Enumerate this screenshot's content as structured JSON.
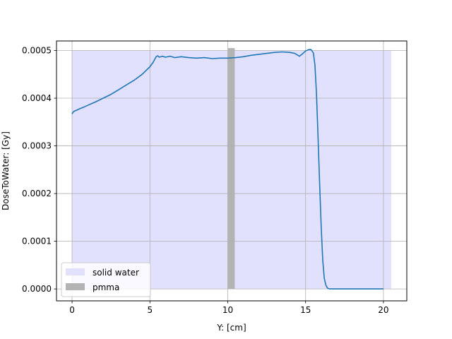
{
  "chart_data": {
    "type": "line",
    "title": "",
    "xlabel": "Y: [cm]",
    "ylabel": "DoseToWater: [Gy]",
    "xlim": [
      -1.0,
      21.5
    ],
    "ylim": [
      -2.5e-05,
      0.00052
    ],
    "xticks": [
      0,
      5,
      10,
      15,
      20
    ],
    "xtick_labels": [
      "0",
      "5",
      "10",
      "15",
      "20"
    ],
    "yticks": [
      0.0,
      0.0001,
      0.0002,
      0.0003,
      0.0004,
      0.0005
    ],
    "ytick_labels": [
      "0.0000",
      "0.0001",
      "0.0002",
      "0.0003",
      "0.0004",
      "0.0005"
    ],
    "grid": true,
    "legend_position": "lower-left",
    "regions": [
      {
        "name": "solid water",
        "x": [
          0.0,
          20.5
        ],
        "y": [
          0.0,
          0.0005
        ],
        "color": "#e1e1fe"
      },
      {
        "name": "pmma",
        "x": [
          10.0,
          10.45
        ],
        "y": [
          0.0,
          0.000505
        ],
        "color": "#b3b3b3"
      }
    ],
    "series": [
      {
        "color": "#1f77b4",
        "x": [
          0.0,
          0.1,
          0.3,
          0.5,
          0.8,
          1.0,
          1.5,
          2.0,
          2.5,
          3.0,
          3.5,
          4.0,
          4.5,
          5.0,
          5.2,
          5.4,
          5.5,
          5.6,
          5.8,
          6.0,
          6.3,
          6.6,
          7.0,
          7.5,
          8.0,
          8.5,
          9.0,
          9.5,
          10.0,
          10.5,
          11.0,
          11.5,
          12.0,
          12.5,
          13.0,
          13.5,
          14.0,
          14.3,
          14.6,
          14.8,
          15.0,
          15.2,
          15.35,
          15.5,
          15.6,
          15.7,
          15.8,
          15.9,
          16.0,
          16.1,
          16.2,
          16.3,
          16.4,
          16.5,
          16.6,
          16.8,
          17.0,
          18.0,
          19.0,
          20.0
        ],
        "values": [
          0.000367,
          0.000372,
          0.000375,
          0.000378,
          0.000382,
          0.000385,
          0.000392,
          0.0004,
          0.000408,
          0.000418,
          0.000428,
          0.000438,
          0.00045,
          0.000466,
          0.000475,
          0.000487,
          0.000489,
          0.000486,
          0.000488,
          0.000486,
          0.000488,
          0.000485,
          0.000487,
          0.000485,
          0.000484,
          0.000485,
          0.000483,
          0.000484,
          0.000484,
          0.000485,
          0.000487,
          0.00049,
          0.000492,
          0.000494,
          0.000496,
          0.000497,
          0.000496,
          0.000494,
          0.000488,
          0.000493,
          0.000499,
          0.000502,
          0.000502,
          0.000495,
          0.00047,
          0.00041,
          0.00032,
          0.00022,
          0.00013,
          6e-05,
          2.2e-05,
          8e-06,
          2e-06,
          3e-07,
          0.0,
          0.0,
          0.0,
          0.0,
          0.0,
          0.0
        ]
      }
    ]
  }
}
